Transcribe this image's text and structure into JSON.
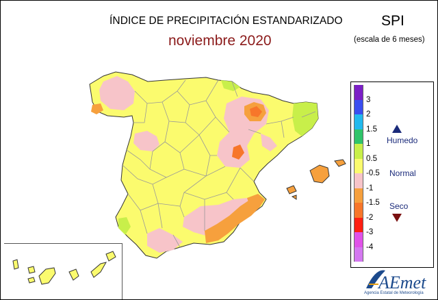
{
  "title": "ÍNDICE DE PRECIPITACIÓN ESTANDARIZADO",
  "subtitle": "noviembre 2020",
  "index_label": "SPI",
  "scale_note": "(escala de 6 meses)",
  "legend": {
    "classes": [
      {
        "color": "#7b1fc6"
      },
      {
        "color": "#3a4ef0"
      },
      {
        "color": "#22b9ee"
      },
      {
        "color": "#2fc46a"
      },
      {
        "color": "#c8ef4a"
      },
      {
        "color": "#fbfb6e"
      },
      {
        "color": "#f7c4c9"
      },
      {
        "color": "#f6a03d"
      },
      {
        "color": "#f7762a"
      },
      {
        "color": "#ff1f12"
      },
      {
        "color": "#e052e8"
      },
      {
        "color": "#d478f0"
      }
    ],
    "ticks": [
      "3",
      "2",
      "1.5",
      "1",
      "0.5",
      "-0.5",
      "-1",
      "-1.5",
      "-2",
      "-3",
      "-4"
    ],
    "humid_label": "Humedo",
    "normal_label": "Normal",
    "dry_label": "Seco",
    "humid_arrow_color": "#1a2a7a",
    "dry_arrow_color": "#7a1010"
  },
  "logo": {
    "text": "AEmet",
    "subtext": "Agencia Estatal de Meteorología",
    "color": "#1c4a8c"
  },
  "map_colors": {
    "normal": "#fbfb6e",
    "dry_mild": "#f7c4c9",
    "dry": "#f6a03d",
    "dry_strong": "#f7762a",
    "wet_mild": "#c8ef4a",
    "border": "#999999",
    "outline": "#333333"
  }
}
